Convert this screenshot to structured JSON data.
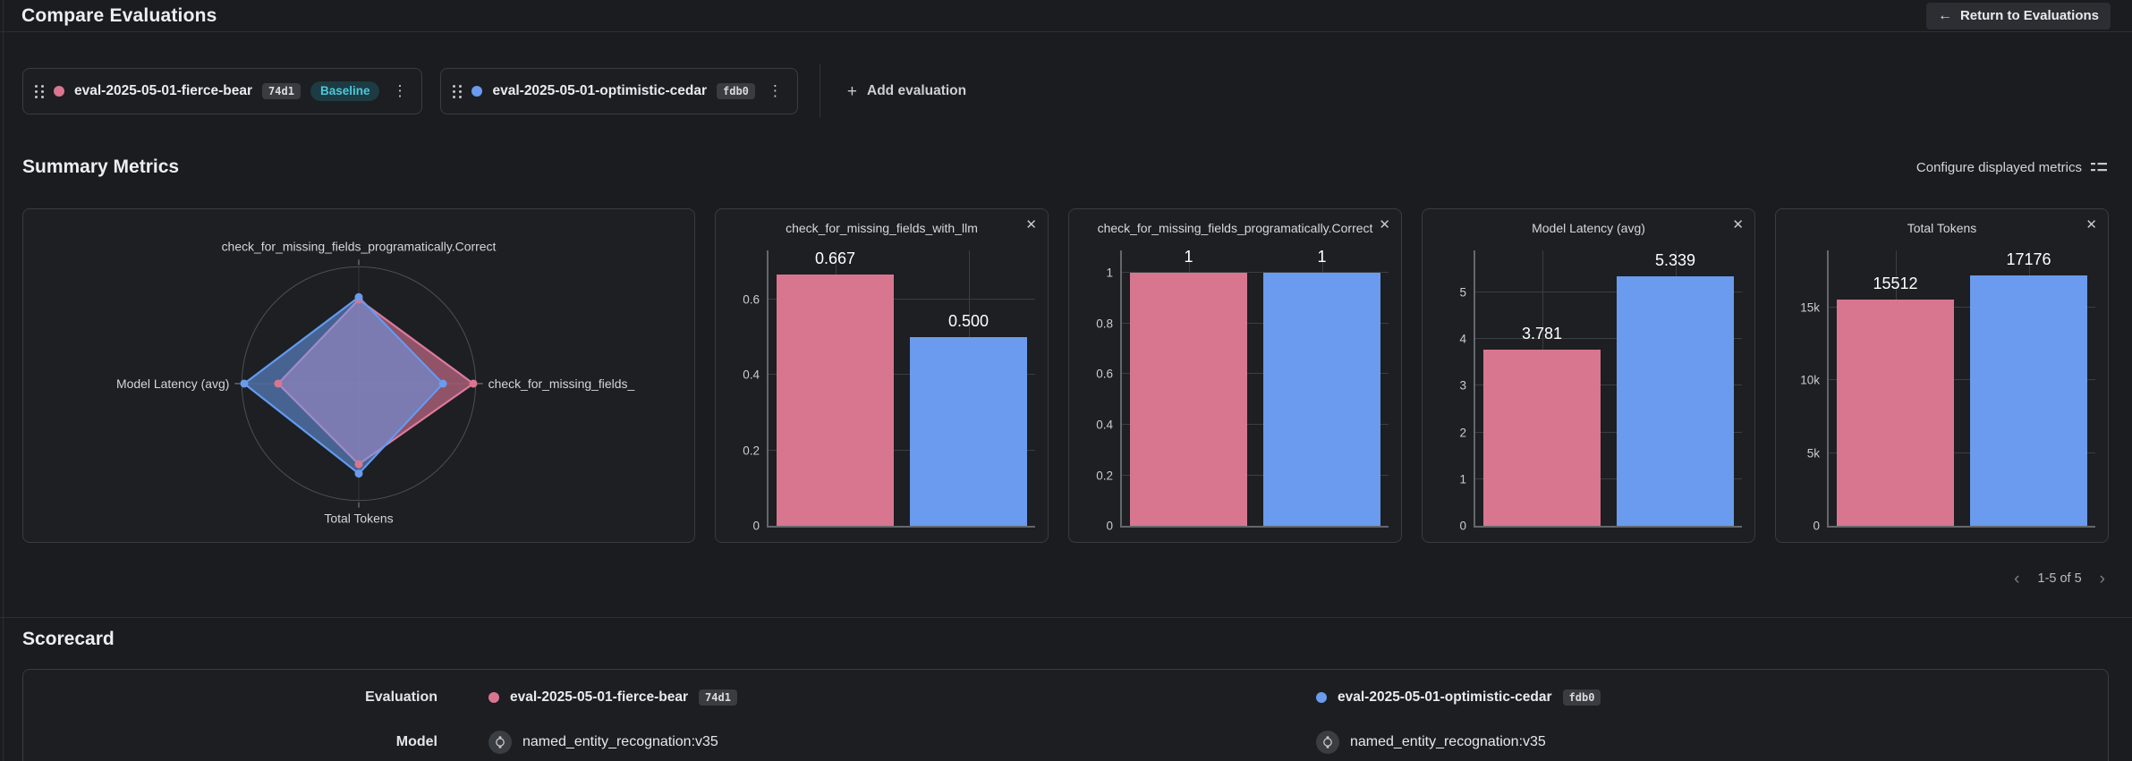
{
  "page": {
    "title": "Compare Evaluations",
    "return_button": "Return to Evaluations"
  },
  "icons": {
    "back_arrow": "←",
    "plus": "+",
    "kebab": "⋮",
    "close": "✕",
    "prev": "‹",
    "next": "›"
  },
  "toolbar": {
    "add_evaluation": "Add evaluation",
    "evaluations": [
      {
        "name": "eval-2025-05-01-fierce-bear",
        "id": "74d1",
        "baseline_label": "Baseline",
        "color": "#d9768f"
      },
      {
        "name": "eval-2025-05-01-optimistic-cedar",
        "id": "fdb0",
        "color": "#6a9bee"
      }
    ]
  },
  "summary": {
    "heading": "Summary Metrics",
    "configure": "Configure displayed metrics",
    "pagination": {
      "range": "1-5 of 5"
    }
  },
  "chart_data": [
    {
      "type": "radar",
      "axes": [
        {
          "label": "check_for_missing_fields_programatically.Correct",
          "pos": "top"
        },
        {
          "label": "check_for_missing_fields_",
          "pos": "right"
        },
        {
          "label": "Total Tokens",
          "pos": "bottom"
        },
        {
          "label": "Model Latency (avg)",
          "pos": "left"
        }
      ],
      "series": [
        {
          "name": "eval-2025-05-01-fierce-bear",
          "color": "#d9768f",
          "stroke": "#dd7a9e",
          "fill": "rgba(216,117,145,0.62)",
          "values": [
            0.72,
            0.98,
            0.69,
            0.69
          ]
        },
        {
          "name": "eval-2025-05-01-optimistic-cedar",
          "color": "#6a9bee",
          "stroke": "#639af0",
          "fill": "rgba(106,155,238,0.55)",
          "values": [
            0.74,
            0.72,
            0.77,
            0.98
          ]
        }
      ],
      "scale": [
        0,
        1
      ],
      "grid": "circle"
    },
    {
      "type": "bar",
      "title": "check_for_missing_fields_with_llm",
      "ymax": 0.73,
      "yticks": [
        {
          "v": 0,
          "label": "0"
        },
        {
          "v": 0.2,
          "label": "0.2"
        },
        {
          "v": 0.4,
          "label": "0.4"
        },
        {
          "v": 0.6,
          "label": "0.6"
        }
      ],
      "vlines": [
        25,
        75
      ],
      "series": [
        {
          "name": "eval-2025-05-01-fierce-bear",
          "value": 0.667,
          "label": "0.667",
          "color": "#d9768f"
        },
        {
          "name": "eval-2025-05-01-optimistic-cedar",
          "value": 0.5,
          "label": "0.500",
          "color": "#6a9bee"
        }
      ]
    },
    {
      "type": "bar",
      "title": "check_for_missing_fields_programatically.Correct",
      "ymax": 1.09,
      "yticks": [
        {
          "v": 0,
          "label": "0"
        },
        {
          "v": 0.2,
          "label": "0.2"
        },
        {
          "v": 0.4,
          "label": "0.4"
        },
        {
          "v": 0.6,
          "label": "0.6"
        },
        {
          "v": 0.8,
          "label": "0.8"
        },
        {
          "v": 1,
          "label": "1"
        }
      ],
      "vlines": [
        25,
        75
      ],
      "series": [
        {
          "name": "eval-2025-05-01-fierce-bear",
          "value": 1,
          "label": "1",
          "color": "#d9768f"
        },
        {
          "name": "eval-2025-05-01-optimistic-cedar",
          "value": 1,
          "label": "1",
          "color": "#6a9bee"
        }
      ]
    },
    {
      "type": "bar",
      "title": "Model Latency (avg)",
      "ymax": 5.9,
      "yticks": [
        {
          "v": 0,
          "label": "0"
        },
        {
          "v": 1,
          "label": "1"
        },
        {
          "v": 2,
          "label": "2"
        },
        {
          "v": 3,
          "label": "3"
        },
        {
          "v": 4,
          "label": "4"
        },
        {
          "v": 5,
          "label": "5"
        }
      ],
      "vlines": [
        25,
        75
      ],
      "series": [
        {
          "name": "eval-2025-05-01-fierce-bear",
          "value": 3.781,
          "label": "3.781",
          "color": "#d9768f"
        },
        {
          "name": "eval-2025-05-01-optimistic-cedar",
          "value": 5.339,
          "label": "5.339",
          "color": "#6a9bee"
        }
      ]
    },
    {
      "type": "bar",
      "title": "Total Tokens",
      "ymax": 18900,
      "yticks": [
        {
          "v": 0,
          "label": "0"
        },
        {
          "v": 5000,
          "label": "5k"
        },
        {
          "v": 10000,
          "label": "10k"
        },
        {
          "v": 15000,
          "label": "15k"
        }
      ],
      "vlines": [
        25,
        75
      ],
      "series": [
        {
          "name": "eval-2025-05-01-fierce-bear",
          "value": 15512,
          "label": "15512",
          "color": "#d9768f"
        },
        {
          "name": "eval-2025-05-01-optimistic-cedar",
          "value": 17176,
          "label": "17176",
          "color": "#6a9bee"
        }
      ]
    }
  ],
  "scorecard": {
    "heading": "Scorecard",
    "rows": [
      {
        "label": "Evaluation",
        "values": [
          {
            "text": "eval-2025-05-01-fierce-bear",
            "id": "74d1",
            "color": "#d9768f"
          },
          {
            "text": "eval-2025-05-01-optimistic-cedar",
            "id": "fdb0",
            "color": "#6a9bee"
          }
        ]
      },
      {
        "label": "Model",
        "values": [
          {
            "text": "named_entity_recognation:v35"
          },
          {
            "text": "named_entity_recognation:v35"
          }
        ]
      }
    ]
  },
  "colors": {
    "pink": "#d9768f",
    "blue": "#6a9bee",
    "baseline_text": "#4fc7da",
    "baseline_bg": "#1c3b43"
  }
}
